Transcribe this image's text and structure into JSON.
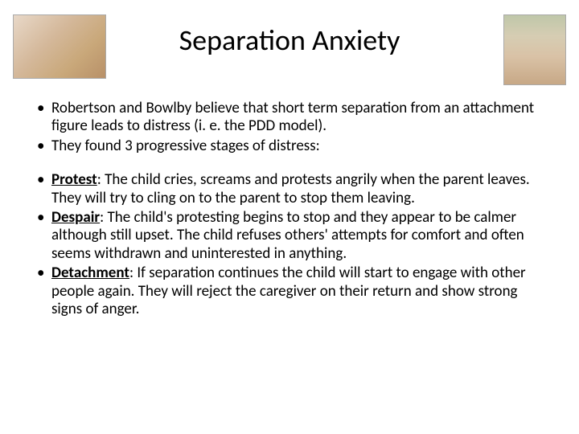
{
  "title": "Separation Anxiety",
  "intro": {
    "items": [
      "Robertson and Bowlby believe that short term separation from an attachment figure leads to distress (i. e. the PDD model).",
      "They found 3 progressive stages of distress:"
    ]
  },
  "stages": {
    "items": [
      {
        "label": "Protest",
        "text": ": The child cries, screams and protests angrily when the parent leaves. They will try to cling on to the parent to stop them leaving."
      },
      {
        "label": "Despair",
        "text": ": The child's protesting begins to stop and they appear to be calmer although still upset. The child refuses others' attempts for comfort and often seems withdrawn and uninterested in anything."
      },
      {
        "label": "Detachment",
        "text": ": If separation continues the child will start to engage with other people again. They will reject the caregiver on their return and show strong signs of anger."
      }
    ]
  },
  "images": {
    "left_alt": "family-reading-photo",
    "right_alt": "baby-monkey-photo"
  },
  "colors": {
    "background": "#ffffff",
    "text": "#000000"
  },
  "typography": {
    "title_fontsize": 36,
    "body_fontsize": 19,
    "font_family": "Calibri"
  }
}
